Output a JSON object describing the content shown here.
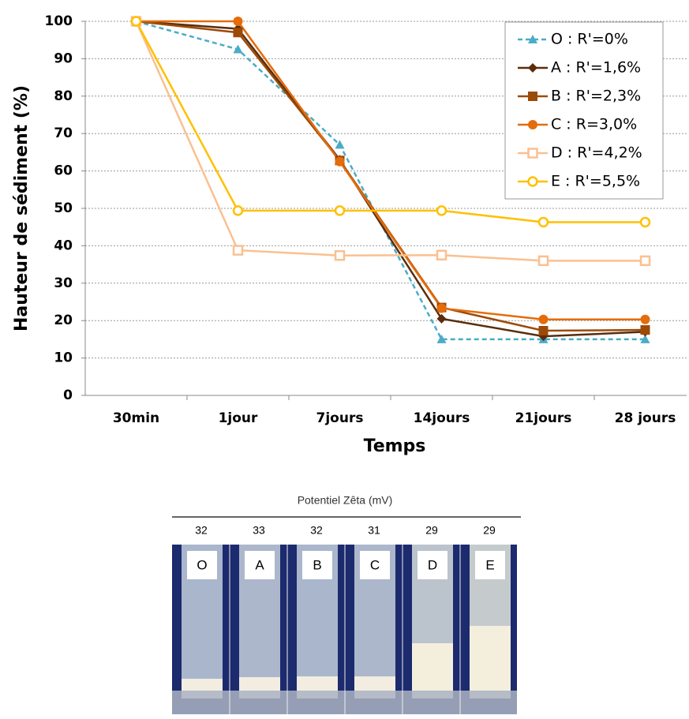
{
  "chart_data": {
    "type": "line",
    "xlabel": "Temps",
    "ylabel": "Hauteur de sédiment (%)",
    "categories": [
      "30min",
      "1jour",
      "7jours",
      "14jours",
      "21jours",
      "28 jours"
    ],
    "ylim": [
      0,
      100
    ],
    "yticks": [
      0,
      10,
      20,
      30,
      40,
      50,
      60,
      70,
      80,
      90,
      100
    ],
    "grid": true,
    "legend": "upper right",
    "series": [
      {
        "name": "O : R'=0%",
        "color": "#4bacc6",
        "marker": "triangle",
        "dashed": true,
        "values": [
          100,
          92.5,
          67,
          15,
          15,
          15
        ]
      },
      {
        "name": "A : R'=1,6%",
        "color": "#5a2d0c",
        "marker": "diamond",
        "values": [
          100,
          98,
          63,
          20.5,
          15.8,
          17
        ]
      },
      {
        "name": "B : R'=2,3%",
        "color": "#9c4a07",
        "marker": "square",
        "values": [
          100,
          97,
          62.8,
          23.5,
          17.3,
          17.5
        ]
      },
      {
        "name": "C : R=3,0%",
        "color": "#e46c0a",
        "marker": "circle",
        "values": [
          100,
          100,
          62.5,
          23.3,
          20.3,
          20.3
        ]
      },
      {
        "name": "D : R'=4,2%",
        "color": "#fac090",
        "marker": "open-square",
        "values": [
          100,
          38.8,
          37.4,
          37.5,
          36,
          36
        ]
      },
      {
        "name": "E : R'=5,5%",
        "color": "#ffc000",
        "marker": "open-circle",
        "values": [
          100,
          49.4,
          49.4,
          49.4,
          46.3,
          46.3
        ]
      }
    ]
  },
  "zeta": {
    "title": "Potentiel Zêta (mV)",
    "values": [
      "32",
      "33",
      "32",
      "31",
      "29",
      "29"
    ]
  },
  "photo": {
    "labels": [
      "O",
      "A",
      "B",
      "C",
      "D",
      "E"
    ]
  }
}
